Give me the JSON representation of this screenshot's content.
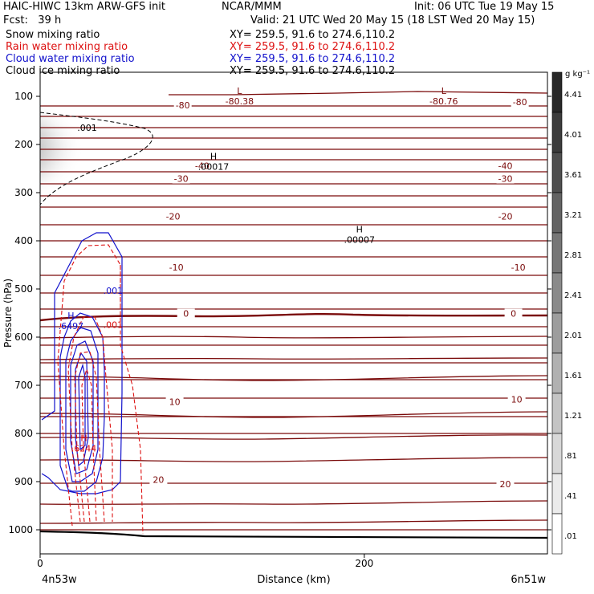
{
  "header": {
    "line1_left": "HAIC-HIWC 13km ARW-GFS init",
    "line1_mid": "NCAR/MMM",
    "line1_right": "Init: 06 UTC Tue 19 May 15",
    "line2_left": "Fcst:   39 h",
    "line2_right": "Valid: 21 UTC Wed 20 May 15 (18 LST Wed 20 May 15)",
    "fields": [
      {
        "name": "Snow mixing ratio",
        "xy": "XY= 259.5, 91.6 to 274.6,110.2",
        "color": "#000000"
      },
      {
        "name": "Rain water mixing ratio",
        "xy": "XY= 259.5, 91.6 to 274.6,110.2",
        "color": "#dd1111"
      },
      {
        "name": "Cloud water mixing ratio",
        "xy": "XY= 259.5, 91.6 to 274.6,110.2",
        "color": "#1111cc"
      },
      {
        "name": "Cloud ice mixing ratio",
        "xy": "XY= 259.5, 91.6 to 274.6,110.2",
        "color": "#000000"
      }
    ]
  },
  "chart_data": {
    "type": "contour-cross-section",
    "xlabel": "Distance (km)",
    "ylabel": "Pressure (hPa)",
    "x_ticks": [
      0,
      200
    ],
    "xlim": [
      0,
      313
    ],
    "y_ticks": [
      100,
      200,
      300,
      400,
      500,
      600,
      700,
      800,
      900,
      1000
    ],
    "ylim": [
      50,
      1050
    ],
    "x_end_labels": {
      "left": "4n53w",
      "right": "6n51w"
    },
    "colorbar": {
      "unit": "g kg⁻¹",
      "labels": [
        "4.41",
        "4.01",
        "3.61",
        "3.21",
        "2.81",
        "2.41",
        "2.01",
        "1.61",
        "1.21",
        ".81",
        ".41",
        ".01"
      ]
    },
    "temperature_labels": [
      {
        "text": "-80",
        "x": 88,
        "p": 118
      },
      {
        "text": "-80",
        "x": 296,
        "p": 112
      },
      {
        "text": "-40",
        "x": 100,
        "p": 244
      },
      {
        "text": "-40",
        "x": 287,
        "p": 244
      },
      {
        "text": "-30",
        "x": 87,
        "p": 271
      },
      {
        "text": "-30",
        "x": 287,
        "p": 271
      },
      {
        "text": "-20",
        "x": 82,
        "p": 349
      },
      {
        "text": "-20",
        "x": 287,
        "p": 349
      },
      {
        "text": "-10",
        "x": 84,
        "p": 455
      },
      {
        "text": "-10",
        "x": 295,
        "p": 455
      },
      {
        "text": "0",
        "x": 90,
        "p": 551
      },
      {
        "text": "0",
        "x": 292,
        "p": 551
      },
      {
        "text": "10",
        "x": 83,
        "p": 734
      },
      {
        "text": "10",
        "x": 294,
        "p": 729
      },
      {
        "text": "20",
        "x": 73,
        "p": 896
      },
      {
        "text": "20",
        "x": 287,
        "p": 905
      }
    ],
    "extrema": [
      {
        "letter": "L",
        "value": "-80.38",
        "x": 123,
        "p": 108,
        "color": "#7a0a0a"
      },
      {
        "letter": "L",
        "value": "-80.76",
        "x": 249,
        "p": 108,
        "color": "#7a0a0a"
      },
      {
        "letter": "H",
        "value": ".00017",
        "x": 107,
        "p": 244,
        "color": "#000000"
      },
      {
        "letter": "H",
        "value": ".00007",
        "x": 197,
        "p": 396,
        "color": "#000000"
      },
      {
        "letter": "H",
        "value": ".6497",
        "x": 19,
        "p": 575,
        "color": "#1111cc"
      },
      {
        "letter": "H",
        "value": ".6244",
        "x": 27,
        "p": 829,
        "color": "#dd1111"
      }
    ],
    "contour_value_labels": [
      {
        "text": ".001",
        "x": 29,
        "p": 165,
        "color": "#000000"
      },
      {
        "text": ".001",
        "x": 45,
        "p": 503,
        "color": "#1111cc"
      },
      {
        "text": ".001",
        "x": 45,
        "p": 574,
        "color": "#dd1111"
      }
    ]
  }
}
